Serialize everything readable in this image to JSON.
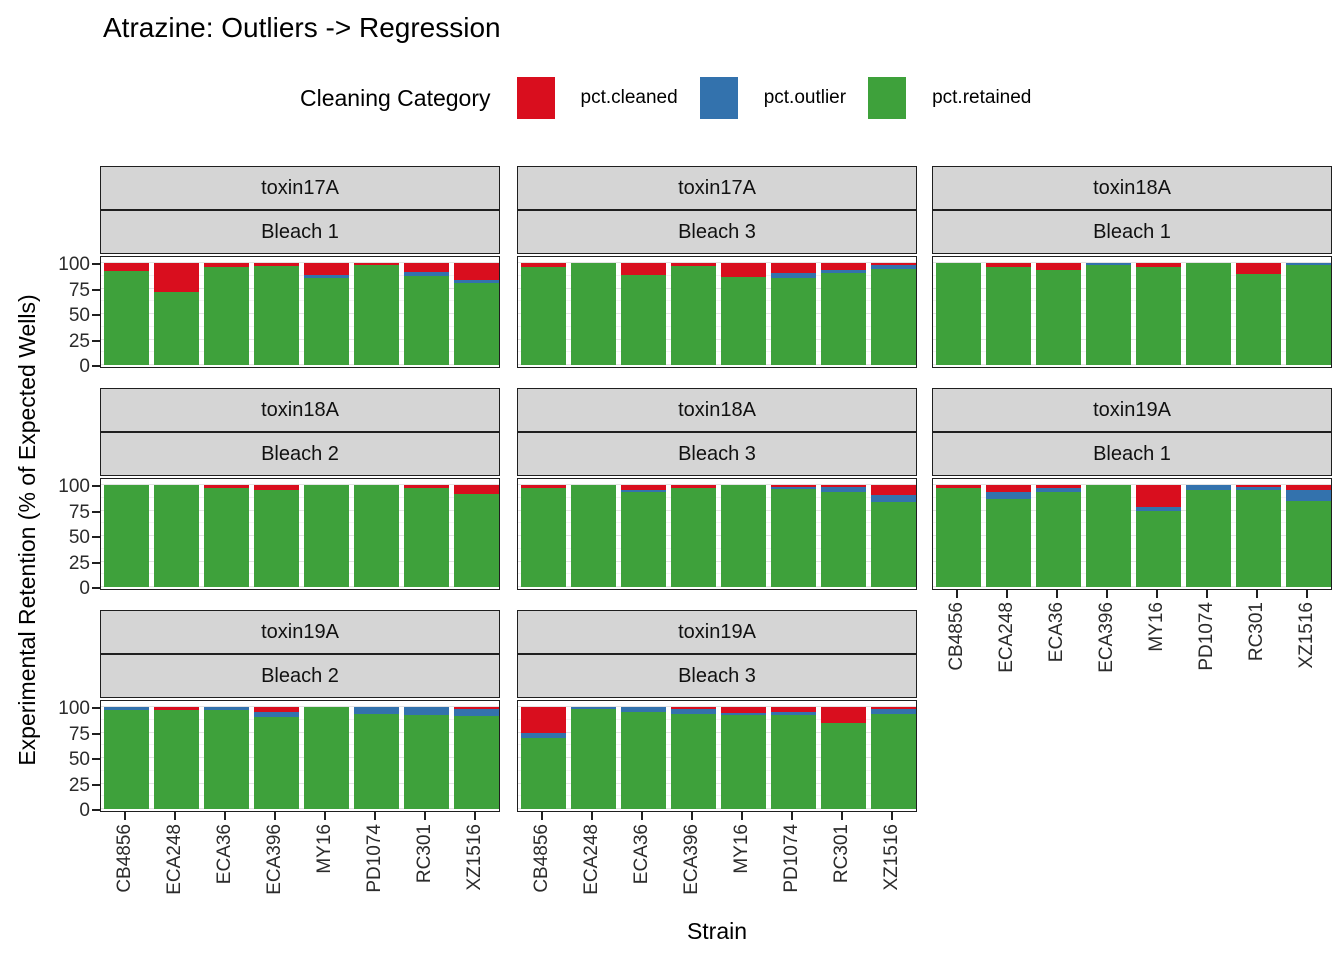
{
  "title": "Atrazine: Outliers -> Regression",
  "legend": {
    "title": "Cleaning Category",
    "items": [
      {
        "label": "pct.cleaned",
        "color": "#d90e1e"
      },
      {
        "label": "pct.outlier",
        "color": "#3372ad"
      },
      {
        "label": "pct.retained",
        "color": "#3ea13b"
      }
    ]
  },
  "y_axis": {
    "title": "Experimental Retention (% of Expected Wells)",
    "ticks": [
      100,
      75,
      50,
      25,
      0
    ],
    "limits": [
      0,
      100
    ]
  },
  "x_axis": {
    "title": "Strain"
  },
  "chart_data": {
    "type": "bar",
    "stacked": true,
    "categories": [
      "CB4856",
      "ECA248",
      "ECA36",
      "ECA396",
      "MY16",
      "PD1074",
      "RC301",
      "XZ1516"
    ],
    "series_order": [
      "pct.cleaned",
      "pct.outlier",
      "pct.retained"
    ],
    "series_colors": {
      "pct.cleaned": "#d90e1e",
      "pct.outlier": "#3372ad",
      "pct.retained": "#3ea13b"
    },
    "title": "Atrazine: Outliers -> Regression",
    "xlabel": "Strain",
    "ylabel": "Experimental Retention (% of Expected Wells)",
    "ylim": [
      0,
      100
    ],
    "layout_hints": {
      "grid": true,
      "legend_position": "top",
      "facet_strips": [
        "toxin",
        "bleach"
      ],
      "facet_grid": "3 columns x 3 rows, last cell empty"
    },
    "facets": [
      {
        "toxin": "toxin17A",
        "bleach": "Bleach 1",
        "row": 0,
        "col": 0,
        "show_x_labels": false,
        "values": {
          "pct.cleaned": [
            8,
            28,
            4,
            3,
            12,
            2,
            9,
            17
          ],
          "pct.outlier": [
            0,
            0,
            0,
            0,
            3,
            0,
            4,
            3
          ],
          "pct.retained": [
            92,
            72,
            96,
            97,
            85,
            98,
            87,
            80
          ]
        }
      },
      {
        "toxin": "toxin17A",
        "bleach": "Bleach 3",
        "row": 0,
        "col": 1,
        "show_x_labels": false,
        "values": {
          "pct.cleaned": [
            4,
            0,
            12,
            3,
            14,
            10,
            7,
            2
          ],
          "pct.outlier": [
            0,
            0,
            0,
            0,
            0,
            5,
            3,
            4
          ],
          "pct.retained": [
            96,
            100,
            88,
            97,
            86,
            85,
            90,
            94
          ]
        }
      },
      {
        "toxin": "toxin18A",
        "bleach": "Bleach 1",
        "row": 0,
        "col": 2,
        "show_x_labels": false,
        "values": {
          "pct.cleaned": [
            0,
            4,
            7,
            0,
            4,
            0,
            11,
            0
          ],
          "pct.outlier": [
            0,
            0,
            0,
            2,
            0,
            0,
            0,
            2
          ],
          "pct.retained": [
            100,
            96,
            93,
            98,
            96,
            100,
            89,
            98
          ]
        }
      },
      {
        "toxin": "toxin18A",
        "bleach": "Bleach 2",
        "row": 1,
        "col": 0,
        "show_x_labels": false,
        "values": {
          "pct.cleaned": [
            0,
            0,
            3,
            5,
            0,
            0,
            3,
            9
          ],
          "pct.outlier": [
            0,
            0,
            0,
            0,
            0,
            0,
            0,
            0
          ],
          "pct.retained": [
            100,
            100,
            97,
            95,
            100,
            100,
            97,
            91
          ]
        }
      },
      {
        "toxin": "toxin18A",
        "bleach": "Bleach 3",
        "row": 1,
        "col": 1,
        "show_x_labels": false,
        "values": {
          "pct.cleaned": [
            3,
            0,
            5,
            3,
            0,
            2,
            2,
            10
          ],
          "pct.outlier": [
            0,
            0,
            2,
            0,
            0,
            2,
            5,
            7
          ],
          "pct.retained": [
            97,
            100,
            93,
            97,
            100,
            96,
            93,
            83
          ]
        }
      },
      {
        "toxin": "toxin19A",
        "bleach": "Bleach 1",
        "row": 1,
        "col": 2,
        "show_x_labels": true,
        "values": {
          "pct.cleaned": [
            3,
            7,
            3,
            0,
            22,
            0,
            2,
            5
          ],
          "pct.outlier": [
            0,
            7,
            4,
            0,
            3,
            5,
            3,
            11
          ],
          "pct.retained": [
            97,
            86,
            93,
            100,
            75,
            95,
            95,
            84
          ]
        }
      },
      {
        "toxin": "toxin19A",
        "bleach": "Bleach 2",
        "row": 2,
        "col": 0,
        "show_x_labels": true,
        "values": {
          "pct.cleaned": [
            0,
            3,
            0,
            5,
            0,
            0,
            0,
            2
          ],
          "pct.outlier": [
            3,
            0,
            3,
            5,
            0,
            7,
            8,
            7
          ],
          "pct.retained": [
            97,
            97,
            97,
            90,
            100,
            93,
            92,
            91
          ]
        }
      },
      {
        "toxin": "toxin19A",
        "bleach": "Bleach 3",
        "row": 2,
        "col": 1,
        "show_x_labels": true,
        "values": {
          "pct.cleaned": [
            25,
            0,
            0,
            2,
            6,
            5,
            16,
            2
          ],
          "pct.outlier": [
            5,
            2,
            5,
            5,
            2,
            3,
            0,
            5
          ],
          "pct.retained": [
            70,
            98,
            95,
            93,
            92,
            92,
            84,
            93
          ]
        }
      }
    ]
  }
}
